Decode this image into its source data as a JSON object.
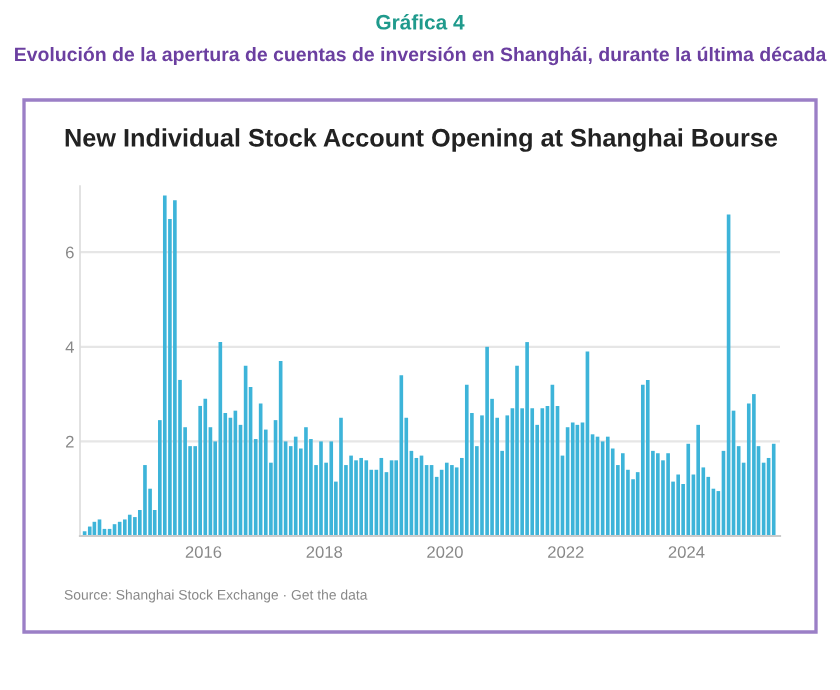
{
  "chart_data": {
    "type": "bar",
    "title": "Gráfica 4",
    "subtitle": "Evolución de la apertura de cuentas de inversión en Shanghái, durante la última década",
    "annotations": [
      "New Individual Stock Account Opening at Shanghai Bourse",
      "Source: Shanghai Stock Exchange · Get the data"
    ],
    "x": [
      "2014-01",
      "2014-02",
      "2014-03",
      "2014-04",
      "2014-05",
      "2014-06",
      "2014-07",
      "2014-08",
      "2014-09",
      "2014-10",
      "2014-11",
      "2014-12",
      "2015-01",
      "2015-02",
      "2015-03",
      "2015-04",
      "2015-05",
      "2015-06",
      "2015-07",
      "2015-08",
      "2015-09",
      "2015-10",
      "2015-11",
      "2015-12",
      "2016-01",
      "2016-02",
      "2016-03",
      "2016-04",
      "2016-05",
      "2016-06",
      "2016-07",
      "2016-08",
      "2016-09",
      "2016-10",
      "2016-11",
      "2016-12",
      "2017-01",
      "2017-02",
      "2017-03",
      "2017-04",
      "2017-05",
      "2017-06",
      "2017-07",
      "2017-08",
      "2017-09",
      "2017-10",
      "2017-11",
      "2017-12",
      "2018-01",
      "2018-02",
      "2018-03",
      "2018-04",
      "2018-05",
      "2018-06",
      "2018-07",
      "2018-08",
      "2018-09",
      "2018-10",
      "2018-11",
      "2018-12",
      "2019-01",
      "2019-02",
      "2019-03",
      "2019-04",
      "2019-05",
      "2019-06",
      "2019-07",
      "2019-08",
      "2019-09",
      "2019-10",
      "2019-11",
      "2019-12",
      "2020-01",
      "2020-02",
      "2020-03",
      "2020-04",
      "2020-05",
      "2020-06",
      "2020-07",
      "2020-08",
      "2020-09",
      "2020-10",
      "2020-11",
      "2020-12",
      "2021-01",
      "2021-02",
      "2021-03",
      "2021-04",
      "2021-05",
      "2021-06",
      "2021-07",
      "2021-08",
      "2021-09",
      "2021-10",
      "2021-11",
      "2021-12",
      "2022-01",
      "2022-02",
      "2022-03",
      "2022-04",
      "2022-05",
      "2022-06",
      "2022-07",
      "2022-08",
      "2022-09",
      "2022-10",
      "2022-11",
      "2022-12",
      "2023-01",
      "2023-02",
      "2023-03",
      "2023-04",
      "2023-05",
      "2023-06",
      "2023-07",
      "2023-08",
      "2023-09",
      "2023-10",
      "2023-11",
      "2023-12",
      "2024-01",
      "2024-02",
      "2024-03",
      "2024-04",
      "2024-05",
      "2024-06",
      "2024-07",
      "2024-08",
      "2024-09",
      "2024-10",
      "2024-11",
      "2024-12",
      "2025-01",
      "2025-02",
      "2025-03",
      "2025-04",
      "2025-05",
      "2025-06"
    ],
    "values": [
      0.1,
      0.2,
      0.3,
      0.35,
      0.15,
      0.15,
      0.25,
      0.3,
      0.35,
      0.45,
      0.4,
      0.55,
      1.5,
      1.0,
      0.55,
      2.45,
      7.2,
      6.7,
      7.1,
      3.3,
      2.3,
      1.9,
      1.9,
      2.75,
      2.9,
      2.3,
      2.0,
      4.1,
      2.6,
      2.5,
      2.65,
      2.35,
      3.6,
      3.15,
      2.05,
      2.8,
      2.25,
      1.55,
      2.45,
      3.7,
      2.0,
      1.9,
      2.1,
      1.85,
      2.3,
      2.05,
      1.5,
      2.0,
      1.55,
      2.0,
      1.15,
      2.5,
      1.5,
      1.7,
      1.6,
      1.65,
      1.6,
      1.4,
      1.4,
      1.65,
      1.35,
      1.6,
      1.6,
      3.4,
      2.5,
      1.8,
      1.65,
      1.7,
      1.5,
      1.5,
      1.25,
      1.4,
      1.55,
      1.5,
      1.45,
      1.65,
      3.2,
      2.6,
      1.9,
      2.55,
      4.0,
      2.9,
      2.5,
      1.8,
      2.55,
      2.7,
      3.6,
      2.7,
      4.1,
      2.7,
      2.35,
      2.7,
      2.75,
      3.2,
      2.75,
      1.7,
      2.3,
      2.4,
      2.35,
      2.4,
      3.9,
      2.15,
      2.1,
      2.0,
      2.1,
      1.85,
      1.5,
      1.75,
      1.4,
      1.2,
      1.35,
      3.2,
      3.3,
      1.8,
      1.75,
      1.6,
      1.75,
      1.15,
      1.3,
      1.1,
      1.95,
      1.3,
      2.35,
      1.45,
      1.25,
      1.0,
      0.95,
      1.8,
      6.8,
      2.65,
      1.9,
      1.55,
      2.8,
      3.0,
      1.9,
      1.55,
      1.65,
      1.95
    ],
    "color": "#3db4d9",
    "xlim": [
      "2013-12-15",
      "2025-07-20"
    ],
    "xticks": [
      "2016",
      "2018",
      "2020",
      "2022",
      "2024"
    ],
    "ylim": [
      0,
      7.4
    ],
    "yticks": [
      2,
      4,
      6
    ],
    "grid": "y"
  }
}
